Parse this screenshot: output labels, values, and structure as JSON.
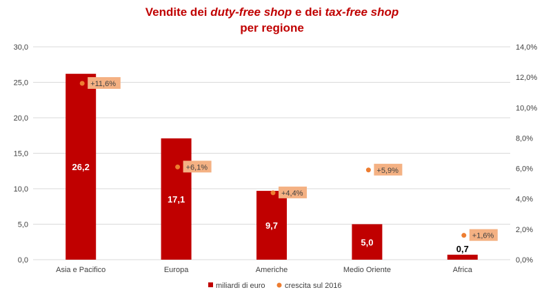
{
  "title": {
    "line1_part1": "Vendite dei ",
    "line1_em1": "duty-free shop",
    "line1_part2": " e dei ",
    "line1_em2": "tax-free shop",
    "line2": "per regione"
  },
  "colors": {
    "bar": "#c00000",
    "dot": "#ed7d31",
    "label_box": "#f4b183",
    "title": "#c00000",
    "grid": "#d9d9d9",
    "axis_text": "#404040"
  },
  "chart_data": {
    "type": "bar",
    "categories": [
      "Asia e Pacifico",
      "Europa",
      "Americhe",
      "Medio Oriente",
      "Africa"
    ],
    "series": [
      {
        "name": "miliardi di euro",
        "type": "bar",
        "axis": "left",
        "values": [
          26.2,
          17.1,
          9.7,
          5.0,
          0.7
        ],
        "labels": [
          "26,2",
          "17,1",
          "9,7",
          "5,0",
          "0,7"
        ]
      },
      {
        "name": "crescita sul 2016",
        "type": "scatter",
        "axis": "right",
        "values": [
          11.6,
          6.1,
          4.4,
          5.9,
          1.6
        ],
        "labels": [
          "+11,6%",
          "+6,1%",
          "+4,4%",
          "+5,9%",
          "+1,6%"
        ]
      }
    ],
    "y_left": {
      "ylim": [
        0,
        30
      ],
      "ticks": [
        0,
        5,
        10,
        15,
        20,
        25,
        30
      ],
      "tick_labels": [
        "0,0",
        "5,0",
        "10,0",
        "15,0",
        "20,0",
        "25,0",
        "30,0"
      ]
    },
    "y_right": {
      "ylim": [
        0,
        14
      ],
      "ticks": [
        0,
        2,
        4,
        6,
        8,
        10,
        12,
        14
      ],
      "tick_labels": [
        "0,0%",
        "2,0%",
        "4,0%",
        "6,0%",
        "8,0%",
        "10,0%",
        "12,0%",
        "14,0%"
      ]
    },
    "grid": true,
    "legend_position": "bottom"
  }
}
